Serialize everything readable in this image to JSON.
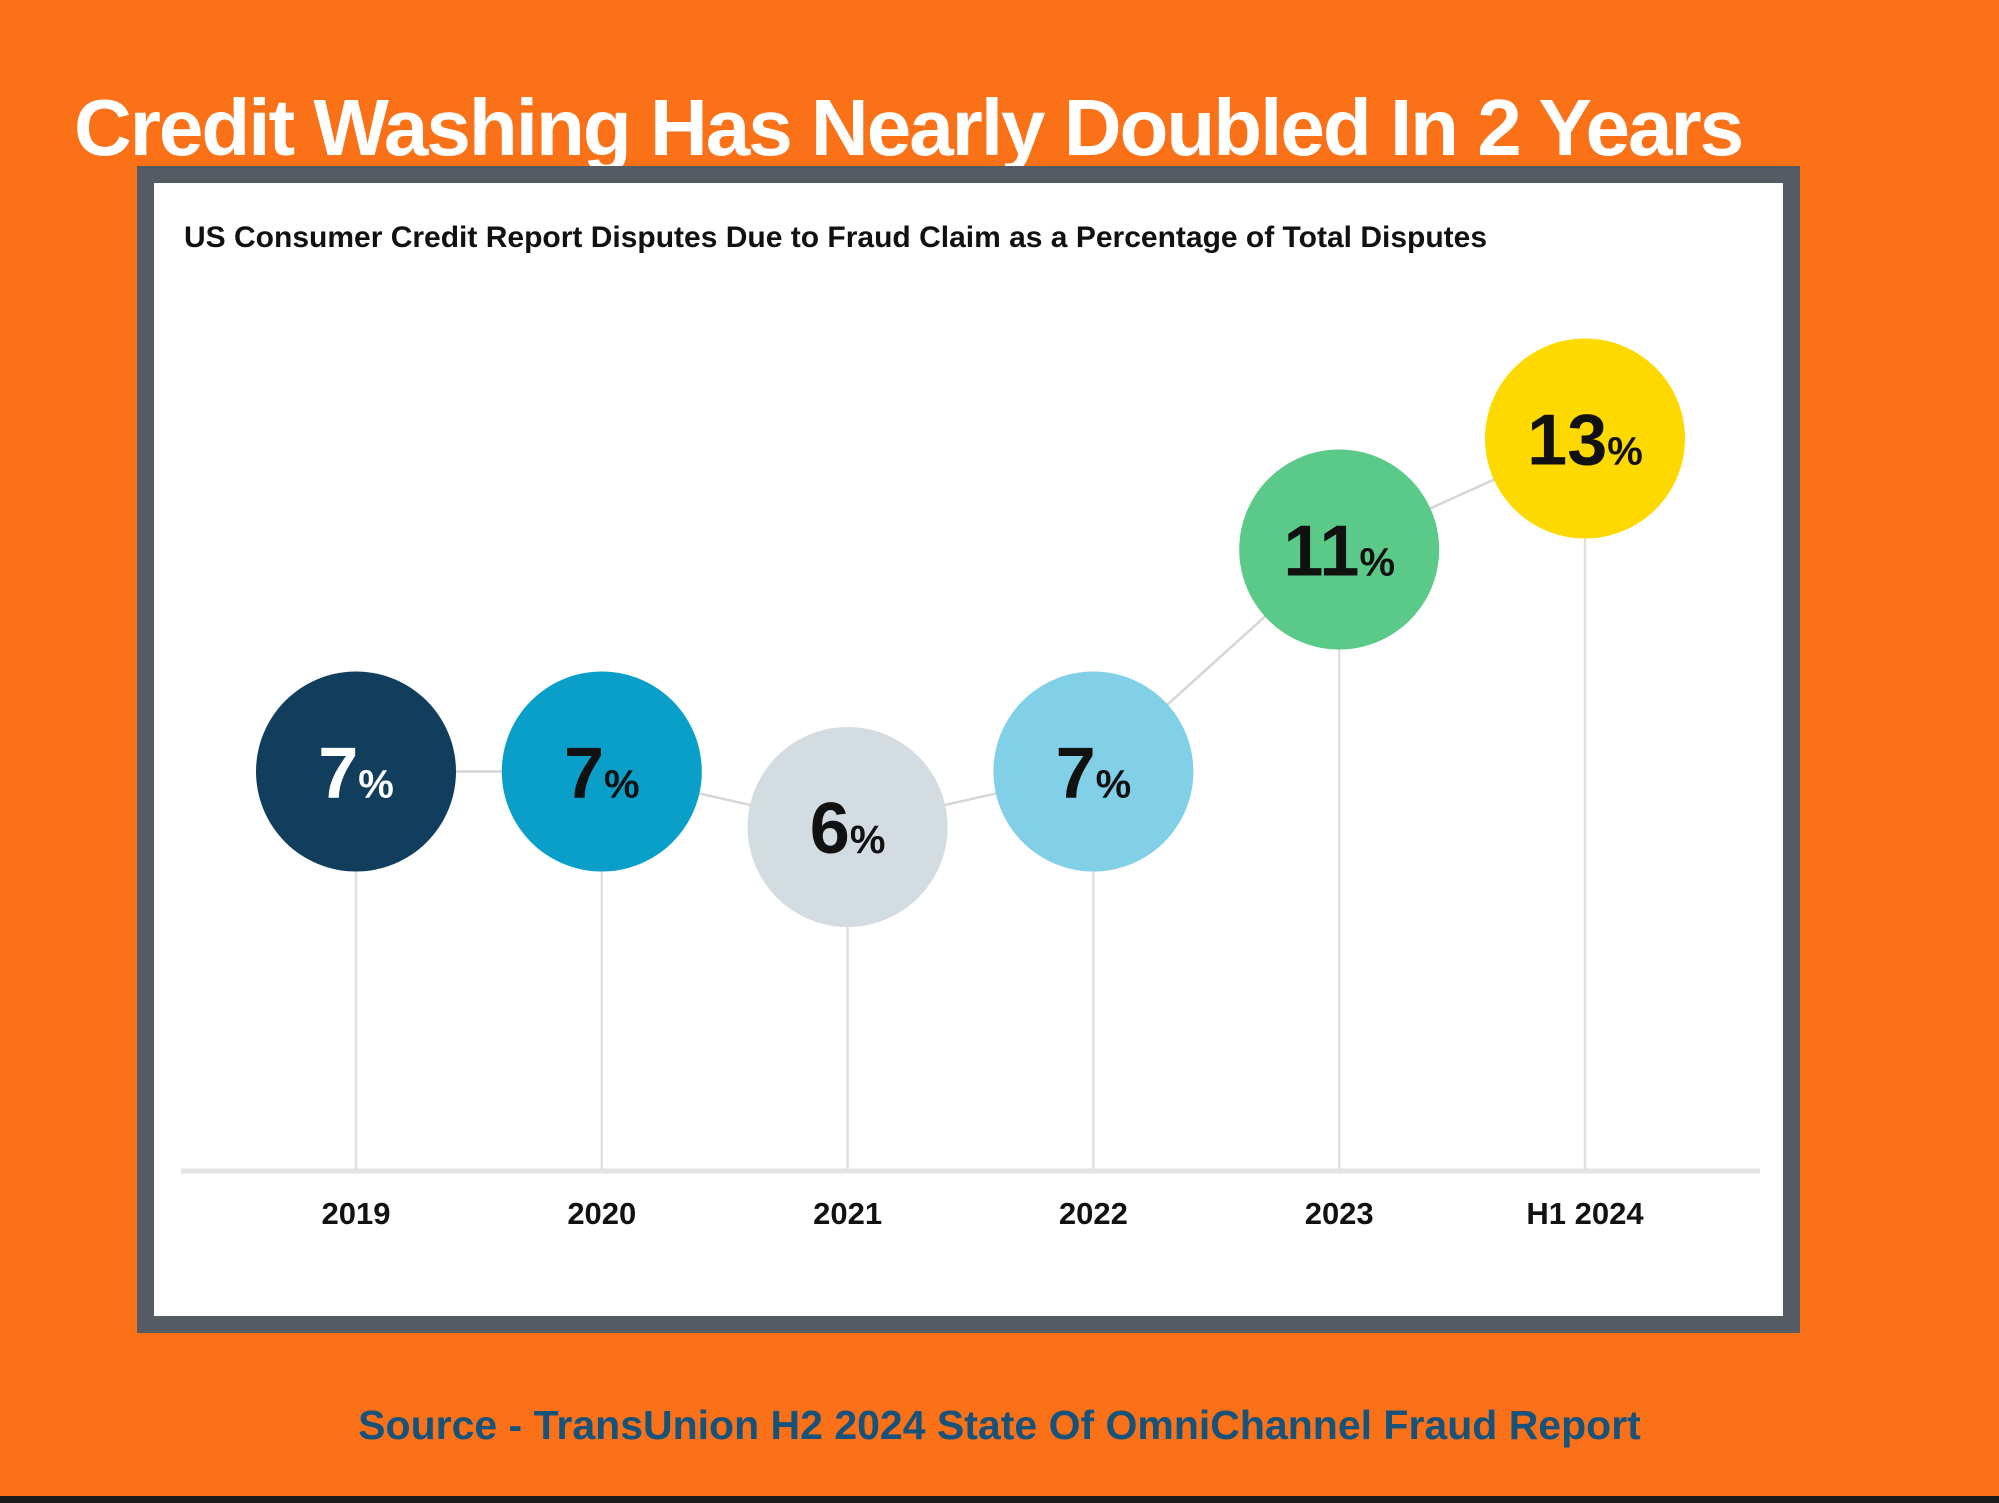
{
  "page": {
    "title": "Credit Washing Has Nearly Doubled In 2 Years",
    "source": "Source - TransUnion H2 2024 State Of OmniChannel Fraud Report"
  },
  "colors": {
    "background": "#fa7118",
    "card_border": "#555b63",
    "card_background": "#ffffff",
    "title_text": "#ffffff",
    "subtitle_text": "#111111",
    "source_text": "#16527a",
    "connector_line": "#d6d6d6",
    "drop_line": "#e0e0e0",
    "axis_line": "#e3e3e3",
    "category_text": "#111111",
    "bottom_bar": "#1b1b1b"
  },
  "chart_data": {
    "type": "line",
    "subtype": "bubble-lollipop-timeline",
    "title": "US Consumer Credit Report Disputes Due to Fraud Claim as a Percentage of Total Disputes",
    "categories": [
      "2019",
      "2020",
      "2021",
      "2022",
      "2023",
      "H1 2024"
    ],
    "values": [
      7,
      7,
      6,
      7,
      11,
      13
    ],
    "unit": "%",
    "point_colors": [
      "#113e5d",
      "#0a9fc9",
      "#d3dde1",
      "#82d0e8",
      "#5bc987",
      "#fdd900"
    ],
    "value_label_colors": [
      "#ffffff",
      "#111111",
      "#111111",
      "#111111",
      "#111111",
      "#111111"
    ],
    "xlabel": "",
    "ylabel": "",
    "ylim": [
      0,
      18
    ],
    "grid": false,
    "legend": false,
    "annotations": []
  }
}
